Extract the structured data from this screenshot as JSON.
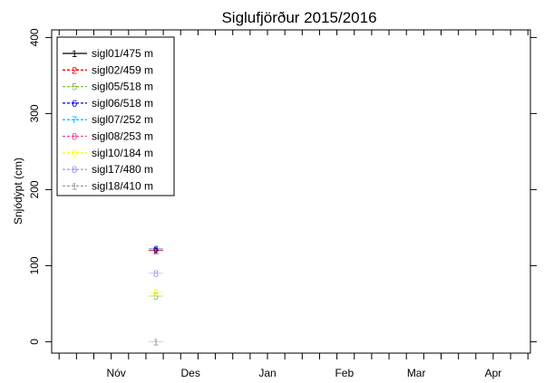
{
  "chart_data": {
    "type": "line",
    "title": "Siglufjörður 2015/2016",
    "xlabel": "",
    "ylabel": "Snjódýpt (cm)",
    "ylim": [
      -15,
      410
    ],
    "x_tick_labels": [
      "Nóv",
      "Des",
      "Jan",
      "Feb",
      "Mar",
      "Apr"
    ],
    "x_label_dates": [
      "2015-11-15",
      "2015-12-15",
      "2016-01-15",
      "2016-02-15",
      "2016-03-15",
      "2016-04-15"
    ],
    "x_range": [
      "2015-10-20",
      "2016-04-30"
    ],
    "y_ticks": [
      0,
      100,
      200,
      300,
      400
    ],
    "grid": false,
    "legend_position": "top-left",
    "series": [
      {
        "name": "sigl01/475 m",
        "marker": "1",
        "color": "#000000",
        "points": [
          {
            "x": "2015-12-01",
            "y": 120
          }
        ]
      },
      {
        "name": "sigl02/459 m",
        "marker": "2",
        "color": "#ff0000",
        "points": [
          {
            "x": "2015-12-01",
            "y": 120
          }
        ]
      },
      {
        "name": "sigl05/518 m",
        "marker": "5",
        "color": "#7fbf3f",
        "points": [
          {
            "x": "2015-12-01",
            "y": 60
          }
        ]
      },
      {
        "name": "sigl06/518 m",
        "marker": "6",
        "color": "#0000cc",
        "points": [
          {
            "x": "2015-12-01",
            "y": 122
          }
        ]
      },
      {
        "name": "sigl07/252 m",
        "marker": "7",
        "color": "#00bfff",
        "points": []
      },
      {
        "name": "sigl08/253 m",
        "marker": "8",
        "color": "#ee4499",
        "points": []
      },
      {
        "name": "sigl10/184 m",
        "marker": "0",
        "color": "#ffff00",
        "points": [
          {
            "x": "2015-12-01",
            "y": 65
          }
        ]
      },
      {
        "name": "sigl17/480 m",
        "marker": "8",
        "color": "#9999ee",
        "points": [
          {
            "x": "2015-12-01",
            "y": 90
          }
        ]
      },
      {
        "name": "sigl18/410 m",
        "marker": "1",
        "color": "#999999",
        "points": [
          {
            "x": "2015-12-01",
            "y": 0
          }
        ]
      }
    ]
  }
}
